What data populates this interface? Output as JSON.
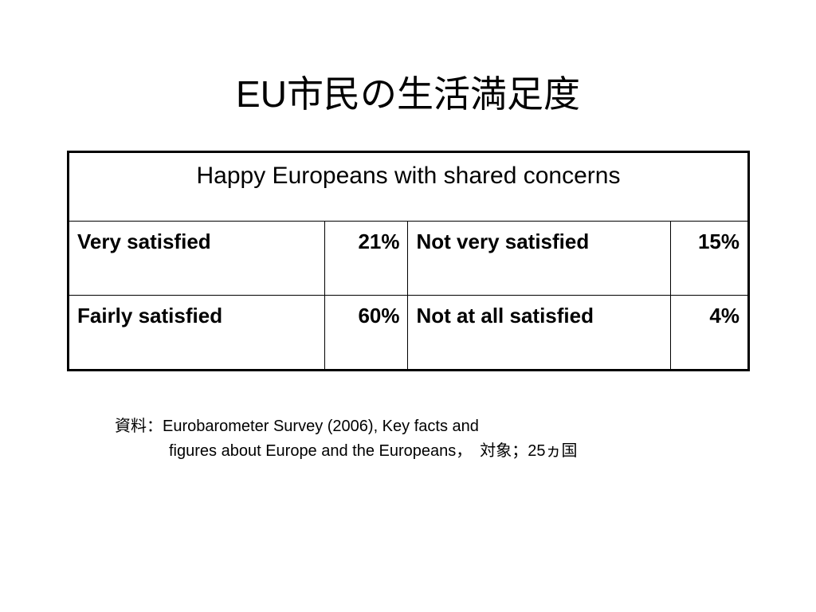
{
  "title": "EU市民の生活満足度",
  "table": {
    "heading": "Happy Europeans with shared concerns",
    "rows": [
      [
        "Very satisfied",
        "21%",
        "Not very satisfied",
        "15%"
      ],
      [
        "Fairly satisfied",
        "60%",
        "Not at all satisfied",
        "4%"
      ]
    ]
  },
  "source": [
    "資料：Eurobarometer Survey (2006), Key facts and",
    "figures about Europe and the Europeans，　対象；25ヵ国"
  ]
}
